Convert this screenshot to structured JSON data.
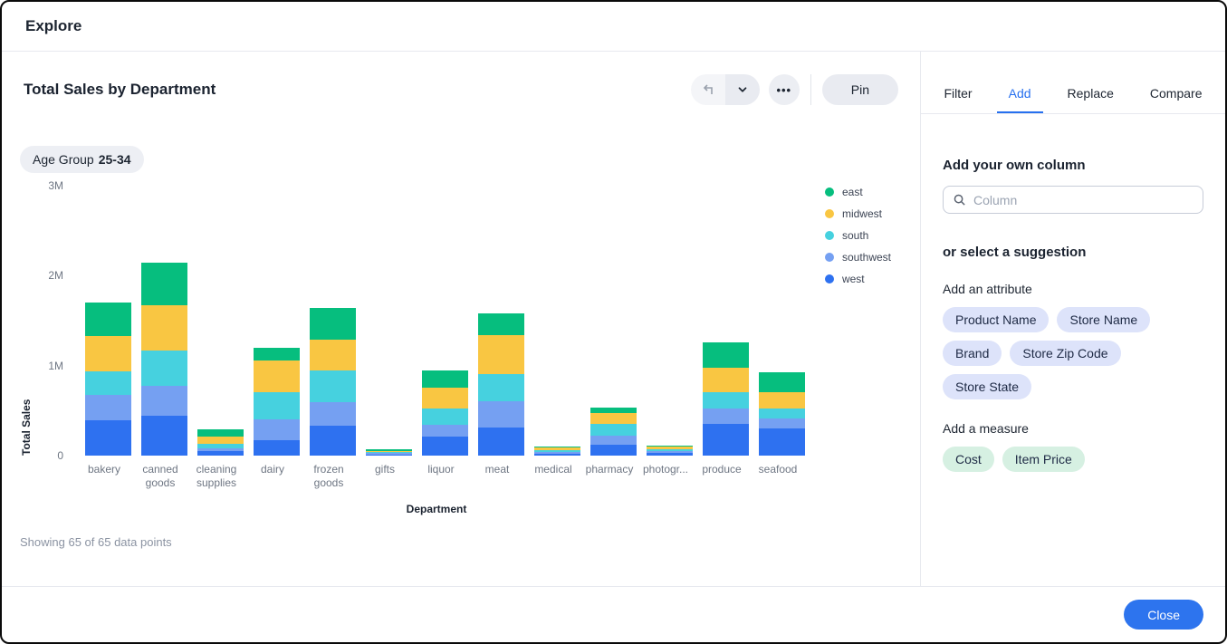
{
  "window": {
    "title": "Explore"
  },
  "viz": {
    "title": "Total Sales by Department",
    "pin_label": "Pin",
    "filter_chip": {
      "label": "Age Group",
      "value": "25-34"
    },
    "showing": "Showing 65 of 65 data points"
  },
  "chart_data": {
    "type": "bar",
    "stacked": true,
    "title": "Total Sales by Department",
    "xlabel": "Department",
    "ylabel": "Total Sales",
    "ylim": [
      0,
      3000000
    ],
    "yticks": [
      {
        "label": "0",
        "value": 0
      },
      {
        "label": "1M",
        "value": 1000000
      },
      {
        "label": "2M",
        "value": 2000000
      },
      {
        "label": "3M",
        "value": 3000000
      }
    ],
    "grid": false,
    "legend_position": "right",
    "legend_order": [
      "east",
      "midwest",
      "south",
      "southwest",
      "west"
    ],
    "categories": [
      "bakery",
      "canned goods",
      "cleaning supplies",
      "dairy",
      "frozen goods",
      "gifts",
      "liquor",
      "meat",
      "medical",
      "pharmacy",
      "photogr...",
      "produce",
      "seafood"
    ],
    "stack_order": "bottom-to-top",
    "series": [
      {
        "name": "west",
        "color": "#2E71F0",
        "values": [
          390000,
          440000,
          50000,
          170000,
          330000,
          15000,
          210000,
          310000,
          20000,
          120000,
          30000,
          350000,
          300000
        ]
      },
      {
        "name": "southwest",
        "color": "#75A0F2",
        "values": [
          280000,
          340000,
          30000,
          230000,
          260000,
          12000,
          130000,
          290000,
          20000,
          100000,
          20000,
          170000,
          110000
        ]
      },
      {
        "name": "south",
        "color": "#46D1DF",
        "values": [
          270000,
          390000,
          50000,
          300000,
          360000,
          15000,
          180000,
          310000,
          20000,
          130000,
          25000,
          180000,
          110000
        ]
      },
      {
        "name": "midwest",
        "color": "#F9C642",
        "values": [
          390000,
          500000,
          80000,
          360000,
          340000,
          12000,
          240000,
          430000,
          35000,
          120000,
          30000,
          280000,
          180000
        ]
      },
      {
        "name": "east",
        "color": "#06BE7E",
        "values": [
          370000,
          470000,
          80000,
          140000,
          350000,
          12000,
          190000,
          240000,
          5000,
          60000,
          5000,
          280000,
          230000
        ]
      }
    ]
  },
  "panel": {
    "tabs": [
      {
        "label": "Filter",
        "active": false
      },
      {
        "label": "Add",
        "active": true
      },
      {
        "label": "Replace",
        "active": false
      },
      {
        "label": "Compare",
        "active": false
      }
    ],
    "add_column_heading": "Add your own column",
    "search_placeholder": "Column",
    "suggestion_heading": "or select a suggestion",
    "attribute_heading": "Add an attribute",
    "attributes": [
      "Product Name",
      "Store Name",
      "Brand",
      "Store Zip Code",
      "Store State"
    ],
    "measure_heading": "Add a measure",
    "measures": [
      "Cost",
      "Item Price"
    ],
    "close_label": "Close"
  }
}
